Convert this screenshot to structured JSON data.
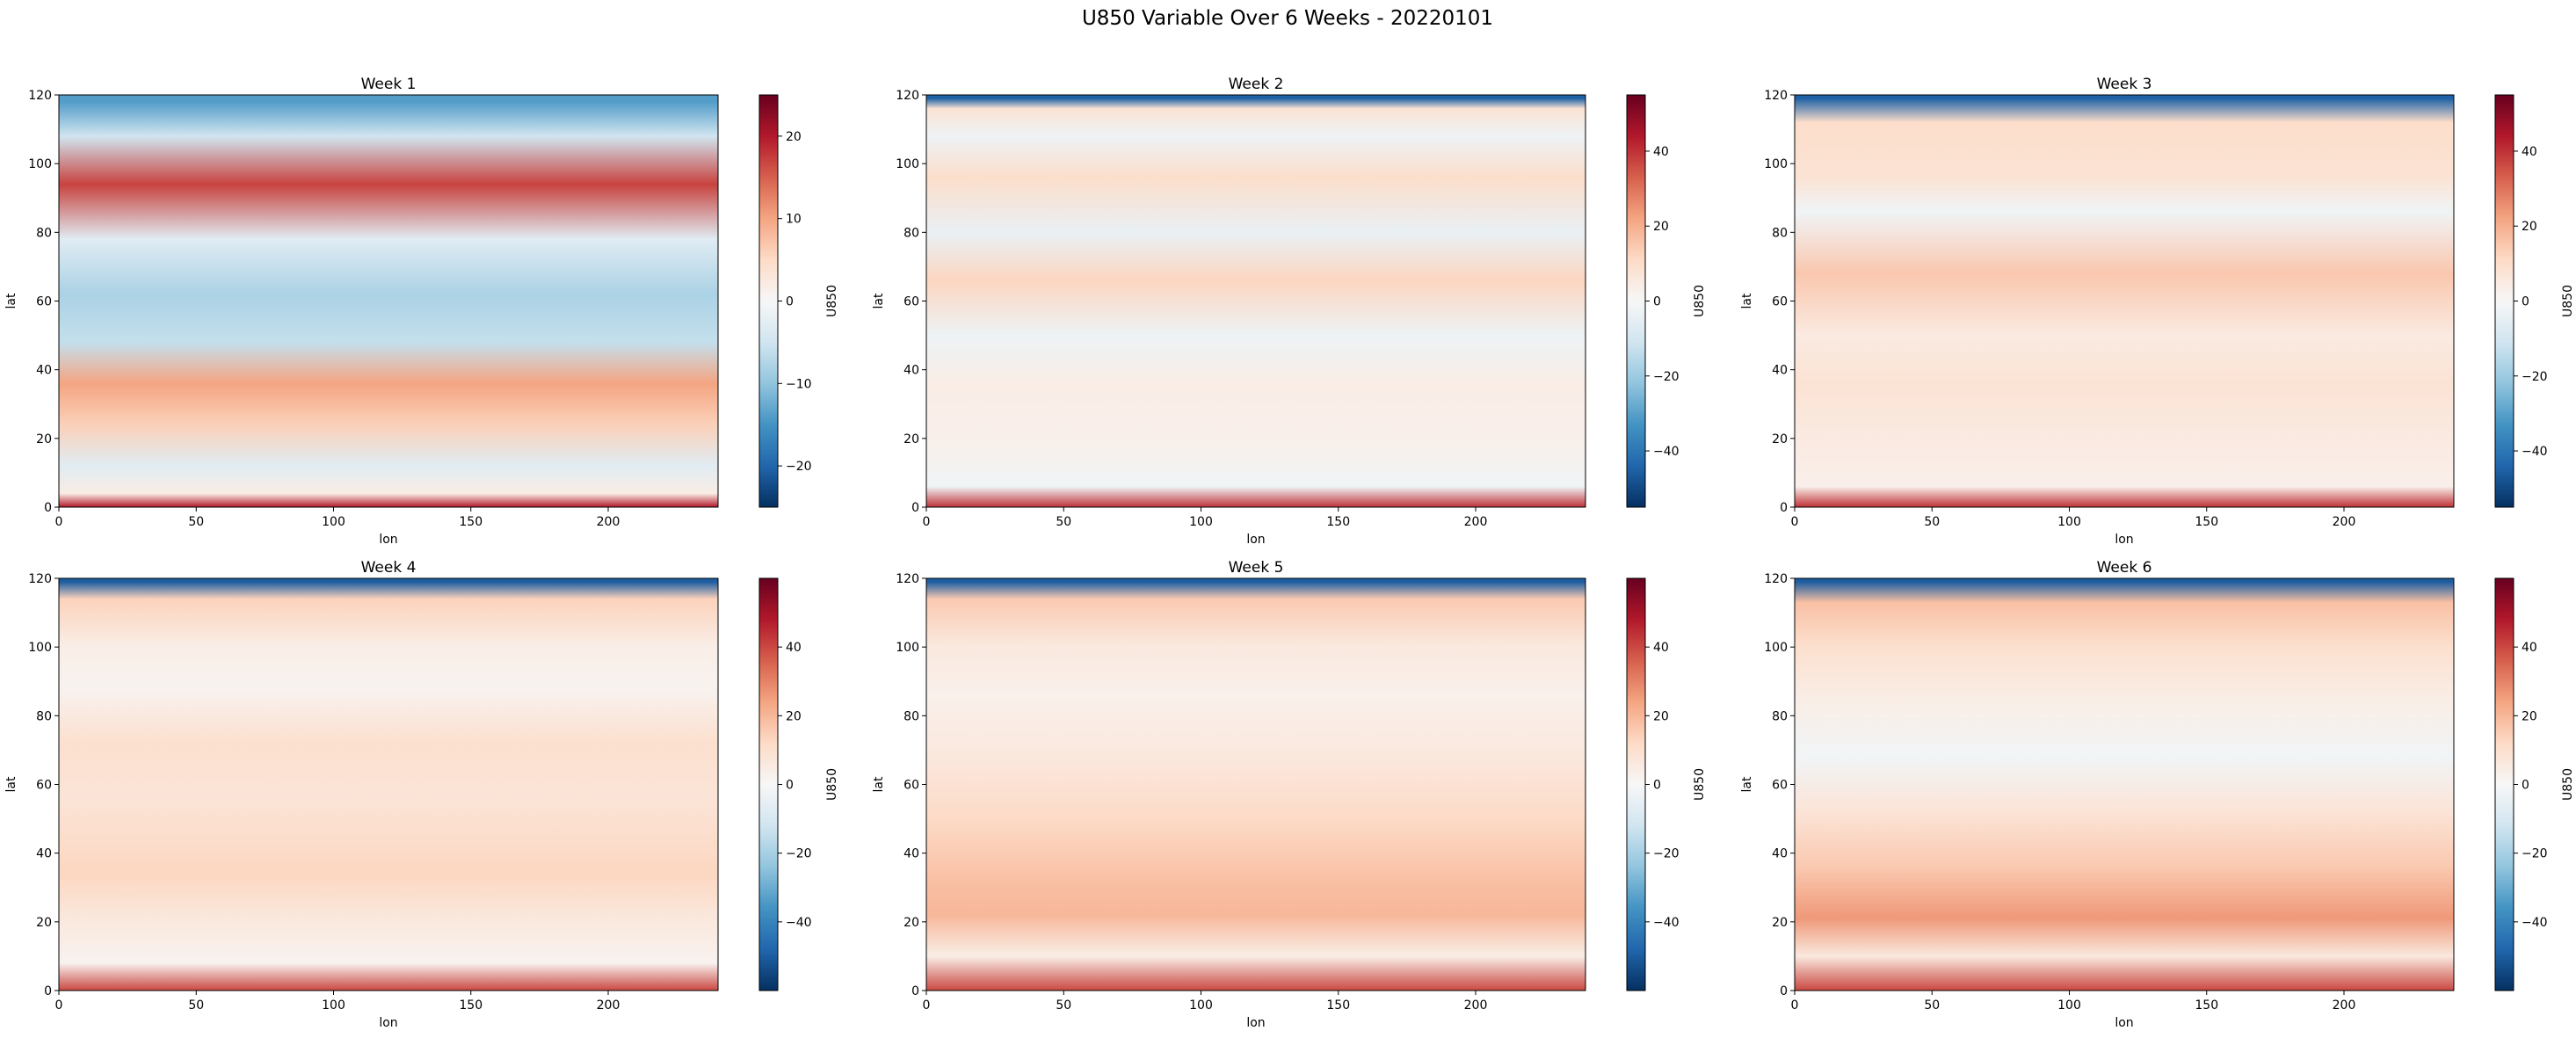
{
  "figure": {
    "title": "U850 Variable Over 6 Weeks - 20220101"
  },
  "chart_data": [
    {
      "type": "heatmap",
      "title": "Week 1",
      "xlabel": "lon",
      "ylabel": "lat",
      "xlim": [
        0,
        240
      ],
      "ylim": [
        0,
        120
      ],
      "xticks": [
        0,
        50,
        100,
        150,
        200
      ],
      "yticks": [
        0,
        20,
        40,
        60,
        80,
        100,
        120
      ],
      "colorbar": {
        "label": "U850",
        "range": [
          -25,
          25
        ],
        "ticks": [
          -20,
          -10,
          0,
          10,
          20
        ],
        "cmap": "RdBu_r"
      },
      "bands": [
        {
          "lat": 118,
          "value": -14
        },
        {
          "lat": 108,
          "value": -5
        },
        {
          "lat": 94,
          "value": 17
        },
        {
          "lat": 78,
          "value": -3
        },
        {
          "lat": 62,
          "value": -8
        },
        {
          "lat": 48,
          "value": -6
        },
        {
          "lat": 36,
          "value": 10
        },
        {
          "lat": 24,
          "value": 6
        },
        {
          "lat": 12,
          "value": -3
        },
        {
          "lat": 4,
          "value": 2
        },
        {
          "lat": 0,
          "value": 20
        }
      ]
    },
    {
      "type": "heatmap",
      "title": "Week 2",
      "xlabel": "lon",
      "ylabel": "lat",
      "xlim": [
        0,
        240
      ],
      "ylim": [
        0,
        120
      ],
      "xticks": [
        0,
        50,
        100,
        150,
        200
      ],
      "yticks": [
        0,
        20,
        40,
        60,
        80,
        100,
        120
      ],
      "colorbar": {
        "label": "U850",
        "range": [
          -55,
          55
        ],
        "ticks": [
          -40,
          -20,
          0,
          20,
          40
        ],
        "cmap": "RdBu_r"
      },
      "bands": [
        {
          "lat": 119,
          "value": -45
        },
        {
          "lat": 116,
          "value": 8
        },
        {
          "lat": 108,
          "value": -3
        },
        {
          "lat": 96,
          "value": 10
        },
        {
          "lat": 80,
          "value": -4
        },
        {
          "lat": 66,
          "value": 12
        },
        {
          "lat": 50,
          "value": -3
        },
        {
          "lat": 36,
          "value": 4
        },
        {
          "lat": 20,
          "value": 3
        },
        {
          "lat": 6,
          "value": -2
        },
        {
          "lat": 0,
          "value": 40
        }
      ]
    },
    {
      "type": "heatmap",
      "title": "Week 3",
      "xlabel": "lon",
      "ylabel": "lat",
      "xlim": [
        0,
        240
      ],
      "ylim": [
        0,
        120
      ],
      "xticks": [
        0,
        50,
        100,
        150,
        200
      ],
      "yticks": [
        0,
        20,
        40,
        60,
        80,
        100,
        120
      ],
      "colorbar": {
        "label": "U850",
        "range": [
          -55,
          55
        ],
        "ticks": [
          -40,
          -20,
          0,
          20,
          40
        ],
        "cmap": "RdBu_r"
      },
      "bands": [
        {
          "lat": 119,
          "value": -45
        },
        {
          "lat": 112,
          "value": 10
        },
        {
          "lat": 96,
          "value": 8
        },
        {
          "lat": 86,
          "value": -2
        },
        {
          "lat": 68,
          "value": 15
        },
        {
          "lat": 50,
          "value": 5
        },
        {
          "lat": 36,
          "value": 8
        },
        {
          "lat": 20,
          "value": 5
        },
        {
          "lat": 6,
          "value": 3
        },
        {
          "lat": 0,
          "value": 40
        }
      ]
    },
    {
      "type": "heatmap",
      "title": "Week 4",
      "xlabel": "lon",
      "ylabel": "lat",
      "xlim": [
        0,
        240
      ],
      "ylim": [
        0,
        120
      ],
      "xticks": [
        0,
        50,
        100,
        150,
        200
      ],
      "yticks": [
        0,
        20,
        40,
        60,
        80,
        100,
        120
      ],
      "colorbar": {
        "label": "U850",
        "range": [
          -60,
          60
        ],
        "ticks": [
          -40,
          -20,
          0,
          20,
          40
        ],
        "cmap": "RdBu_r"
      },
      "bands": [
        {
          "lat": 119,
          "value": -50
        },
        {
          "lat": 114,
          "value": 14
        },
        {
          "lat": 100,
          "value": 4
        },
        {
          "lat": 88,
          "value": 2
        },
        {
          "lat": 72,
          "value": 10
        },
        {
          "lat": 56,
          "value": 8
        },
        {
          "lat": 34,
          "value": 13
        },
        {
          "lat": 20,
          "value": 6
        },
        {
          "lat": 8,
          "value": 2
        },
        {
          "lat": 0,
          "value": 40
        }
      ]
    },
    {
      "type": "heatmap",
      "title": "Week 5",
      "xlabel": "lon",
      "ylabel": "lat",
      "xlim": [
        0,
        240
      ],
      "ylim": [
        0,
        120
      ],
      "xticks": [
        0,
        50,
        100,
        150,
        200
      ],
      "yticks": [
        0,
        20,
        40,
        60,
        80,
        100,
        120
      ],
      "colorbar": {
        "label": "U850",
        "range": [
          -60,
          60
        ],
        "ticks": [
          -40,
          -20,
          0,
          20,
          40
        ],
        "cmap": "RdBu_r"
      },
      "bands": [
        {
          "lat": 119,
          "value": -50
        },
        {
          "lat": 114,
          "value": 16
        },
        {
          "lat": 100,
          "value": 6
        },
        {
          "lat": 86,
          "value": 3
        },
        {
          "lat": 70,
          "value": 6
        },
        {
          "lat": 50,
          "value": 12
        },
        {
          "lat": 32,
          "value": 18
        },
        {
          "lat": 22,
          "value": 20
        },
        {
          "lat": 10,
          "value": 4
        },
        {
          "lat": 0,
          "value": 40
        }
      ]
    },
    {
      "type": "heatmap",
      "title": "Week 6",
      "xlabel": "lon",
      "ylabel": "lat",
      "xlim": [
        0,
        240
      ],
      "ylim": [
        0,
        120
      ],
      "xticks": [
        0,
        50,
        100,
        150,
        200
      ],
      "yticks": [
        0,
        20,
        40,
        60,
        80,
        100,
        120
      ],
      "colorbar": {
        "label": "U850",
        "range": [
          -60,
          60
        ],
        "ticks": [
          -40,
          -20,
          0,
          20,
          40
        ],
        "cmap": "RdBu_r"
      },
      "bands": [
        {
          "lat": 119,
          "value": -50
        },
        {
          "lat": 113,
          "value": 18
        },
        {
          "lat": 100,
          "value": 10
        },
        {
          "lat": 84,
          "value": 4
        },
        {
          "lat": 68,
          "value": -2
        },
        {
          "lat": 52,
          "value": 8
        },
        {
          "lat": 36,
          "value": 16
        },
        {
          "lat": 21,
          "value": 26
        },
        {
          "lat": 10,
          "value": 6
        },
        {
          "lat": 0,
          "value": 40
        }
      ]
    }
  ]
}
